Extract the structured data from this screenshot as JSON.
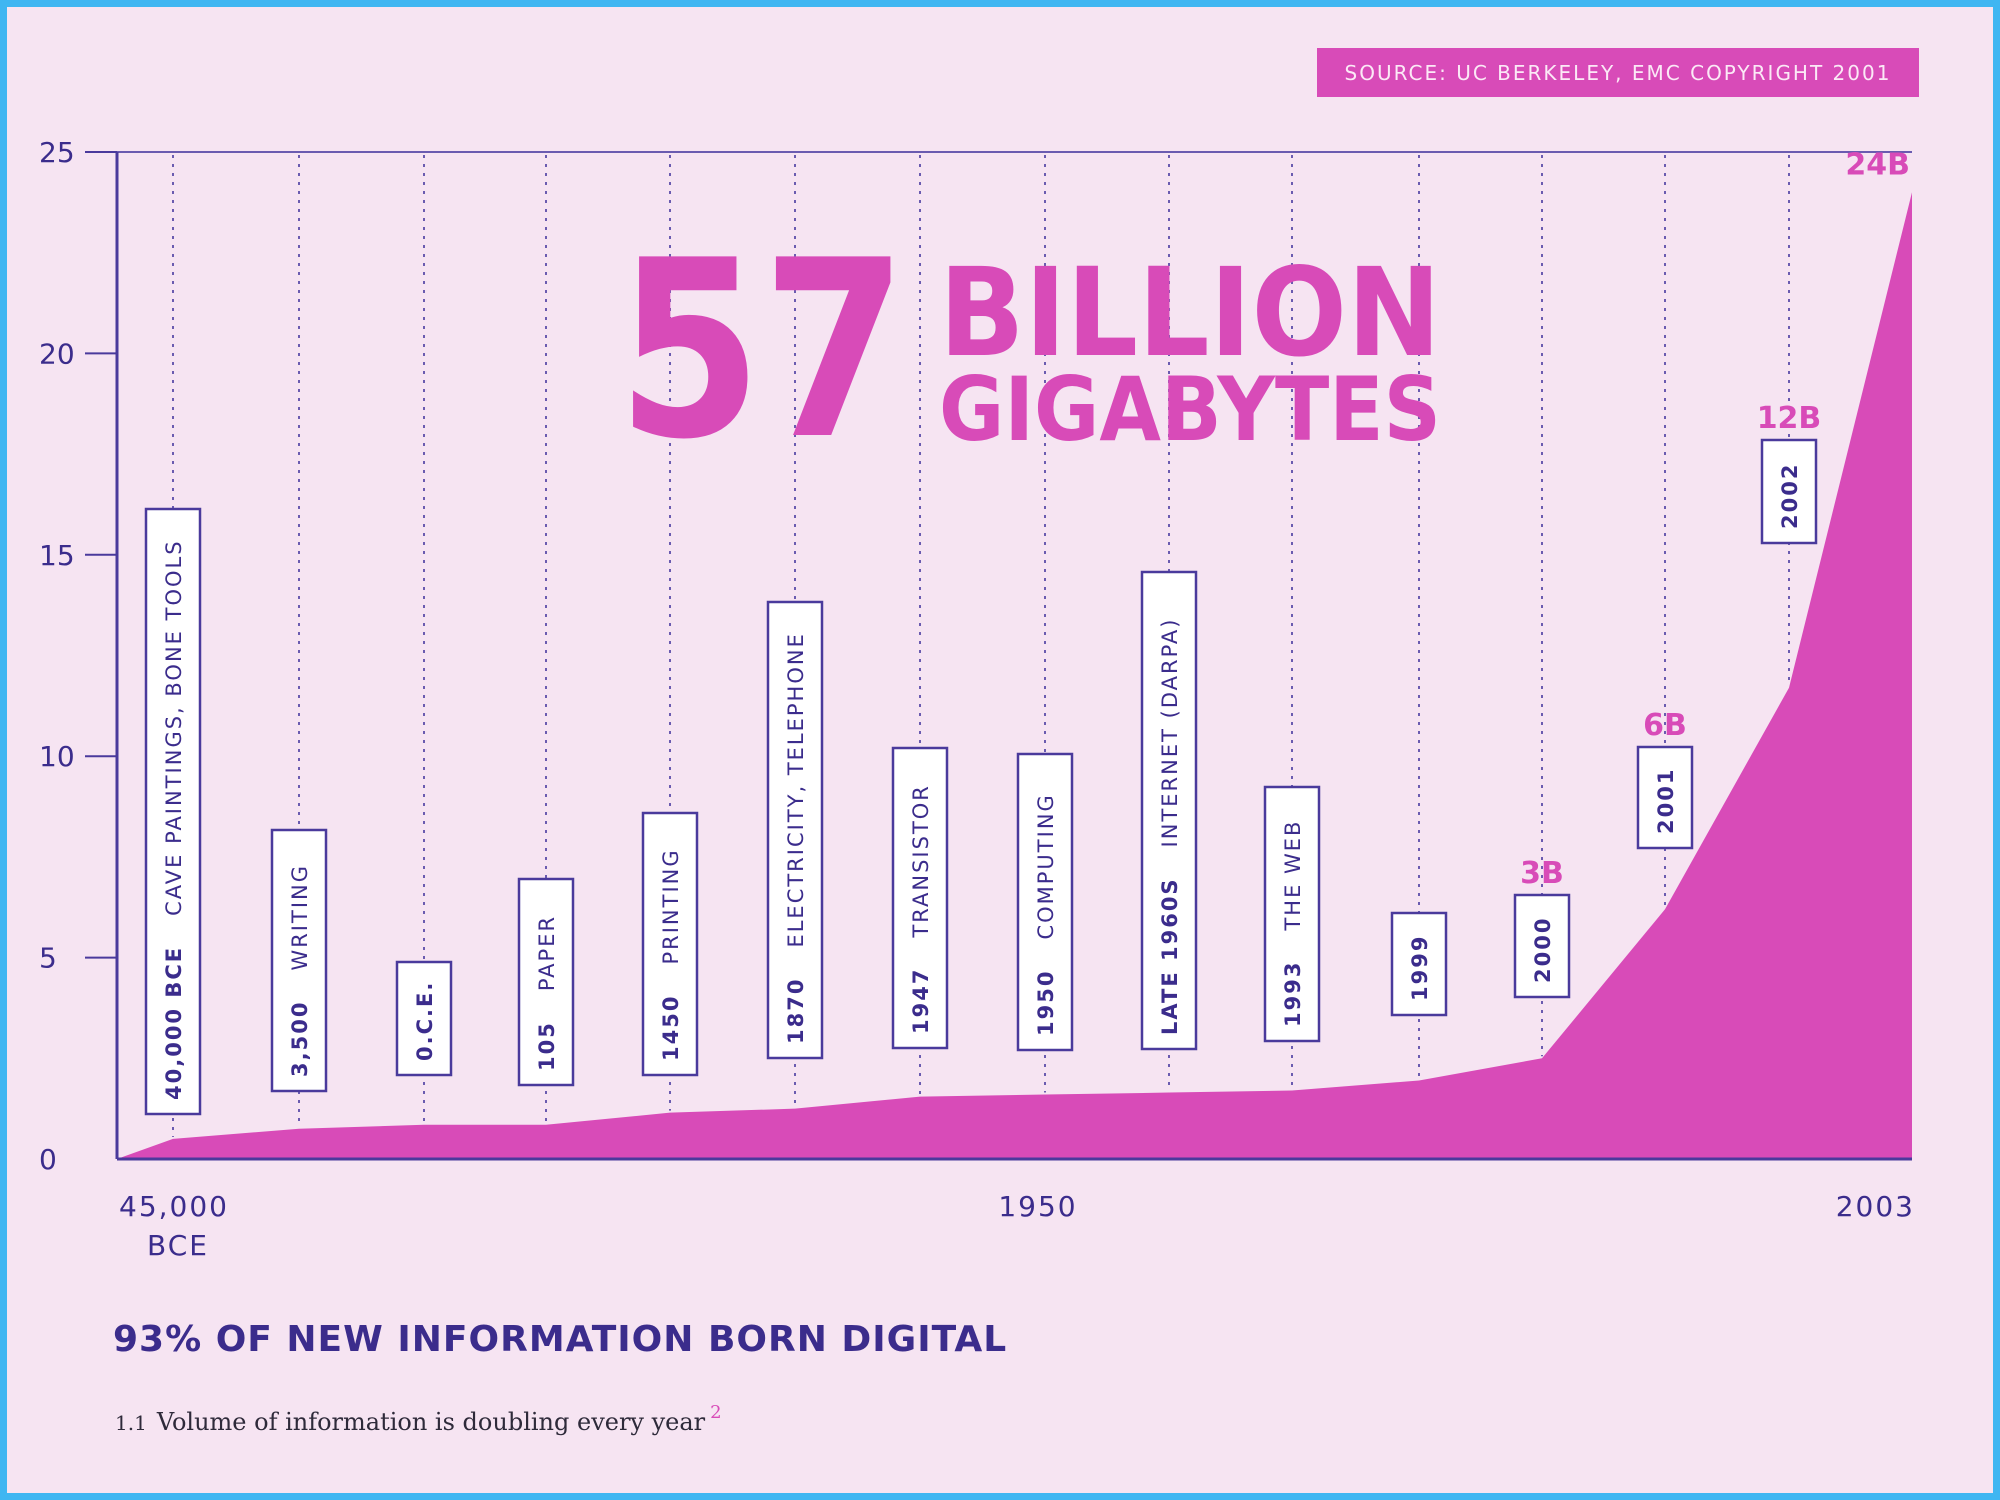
{
  "source": "SOURCE: UC BERKELEY, EMC COPYRIGHT 2001",
  "headline": "93% OF NEW INFORMATION BORN DIGITAL",
  "caption": {
    "number": "1.1",
    "text": "Volume of information is doubling every year",
    "footnote": "2"
  },
  "colors": {
    "background": "#f6e4f2",
    "frame": "#3fb6f2",
    "accent": "#d84bb8",
    "ink": "#3b2c8c"
  },
  "chart_data": {
    "type": "area",
    "title": {
      "big": "57",
      "line1": "BILLION",
      "line2": "GIGABYTES"
    },
    "ylim": [
      0,
      25
    ],
    "yticks": [
      0,
      5,
      10,
      15,
      20,
      25
    ],
    "x_labels": {
      "start": "45,000",
      "start_sub": "BCE",
      "mid": "1950",
      "end": "2003"
    },
    "grid": false,
    "milestones": [
      {
        "date": "40,000 BCE",
        "event": "CAVE PAINTINGS, BONE TOOLS",
        "y": 0.5
      },
      {
        "date": "3,500",
        "event": "WRITING",
        "y": 0.75
      },
      {
        "date": "0.C.E.",
        "event": "",
        "y": 0.85
      },
      {
        "date": "105",
        "event": "PAPER",
        "y": 0.85
      },
      {
        "date": "1450",
        "event": "PRINTING",
        "y": 1.15
      },
      {
        "date": "1870",
        "event": "ELECTRICITY, TELEPHONE",
        "y": 1.25
      },
      {
        "date": "1947",
        "event": "TRANSISTOR",
        "y": 1.55
      },
      {
        "date": "1950",
        "event": "COMPUTING",
        "y": 1.6
      },
      {
        "date": "LATE 1960S",
        "event": "INTERNET (DARPA)",
        "y": 1.65
      },
      {
        "date": "1993",
        "event": "THE WEB",
        "y": 1.7
      },
      {
        "date": "1999",
        "event": "",
        "y": 1.95
      },
      {
        "date": "2000",
        "event": "",
        "y": 2.5,
        "value_label": "3B"
      },
      {
        "date": "2001",
        "event": "",
        "y": 6.2,
        "value_label": "6B"
      },
      {
        "date": "2002",
        "event": "",
        "y": 11.7,
        "value_label": "12B"
      },
      {
        "date": "2003",
        "event": "",
        "y": 24.0,
        "value_label": "24B"
      }
    ]
  }
}
